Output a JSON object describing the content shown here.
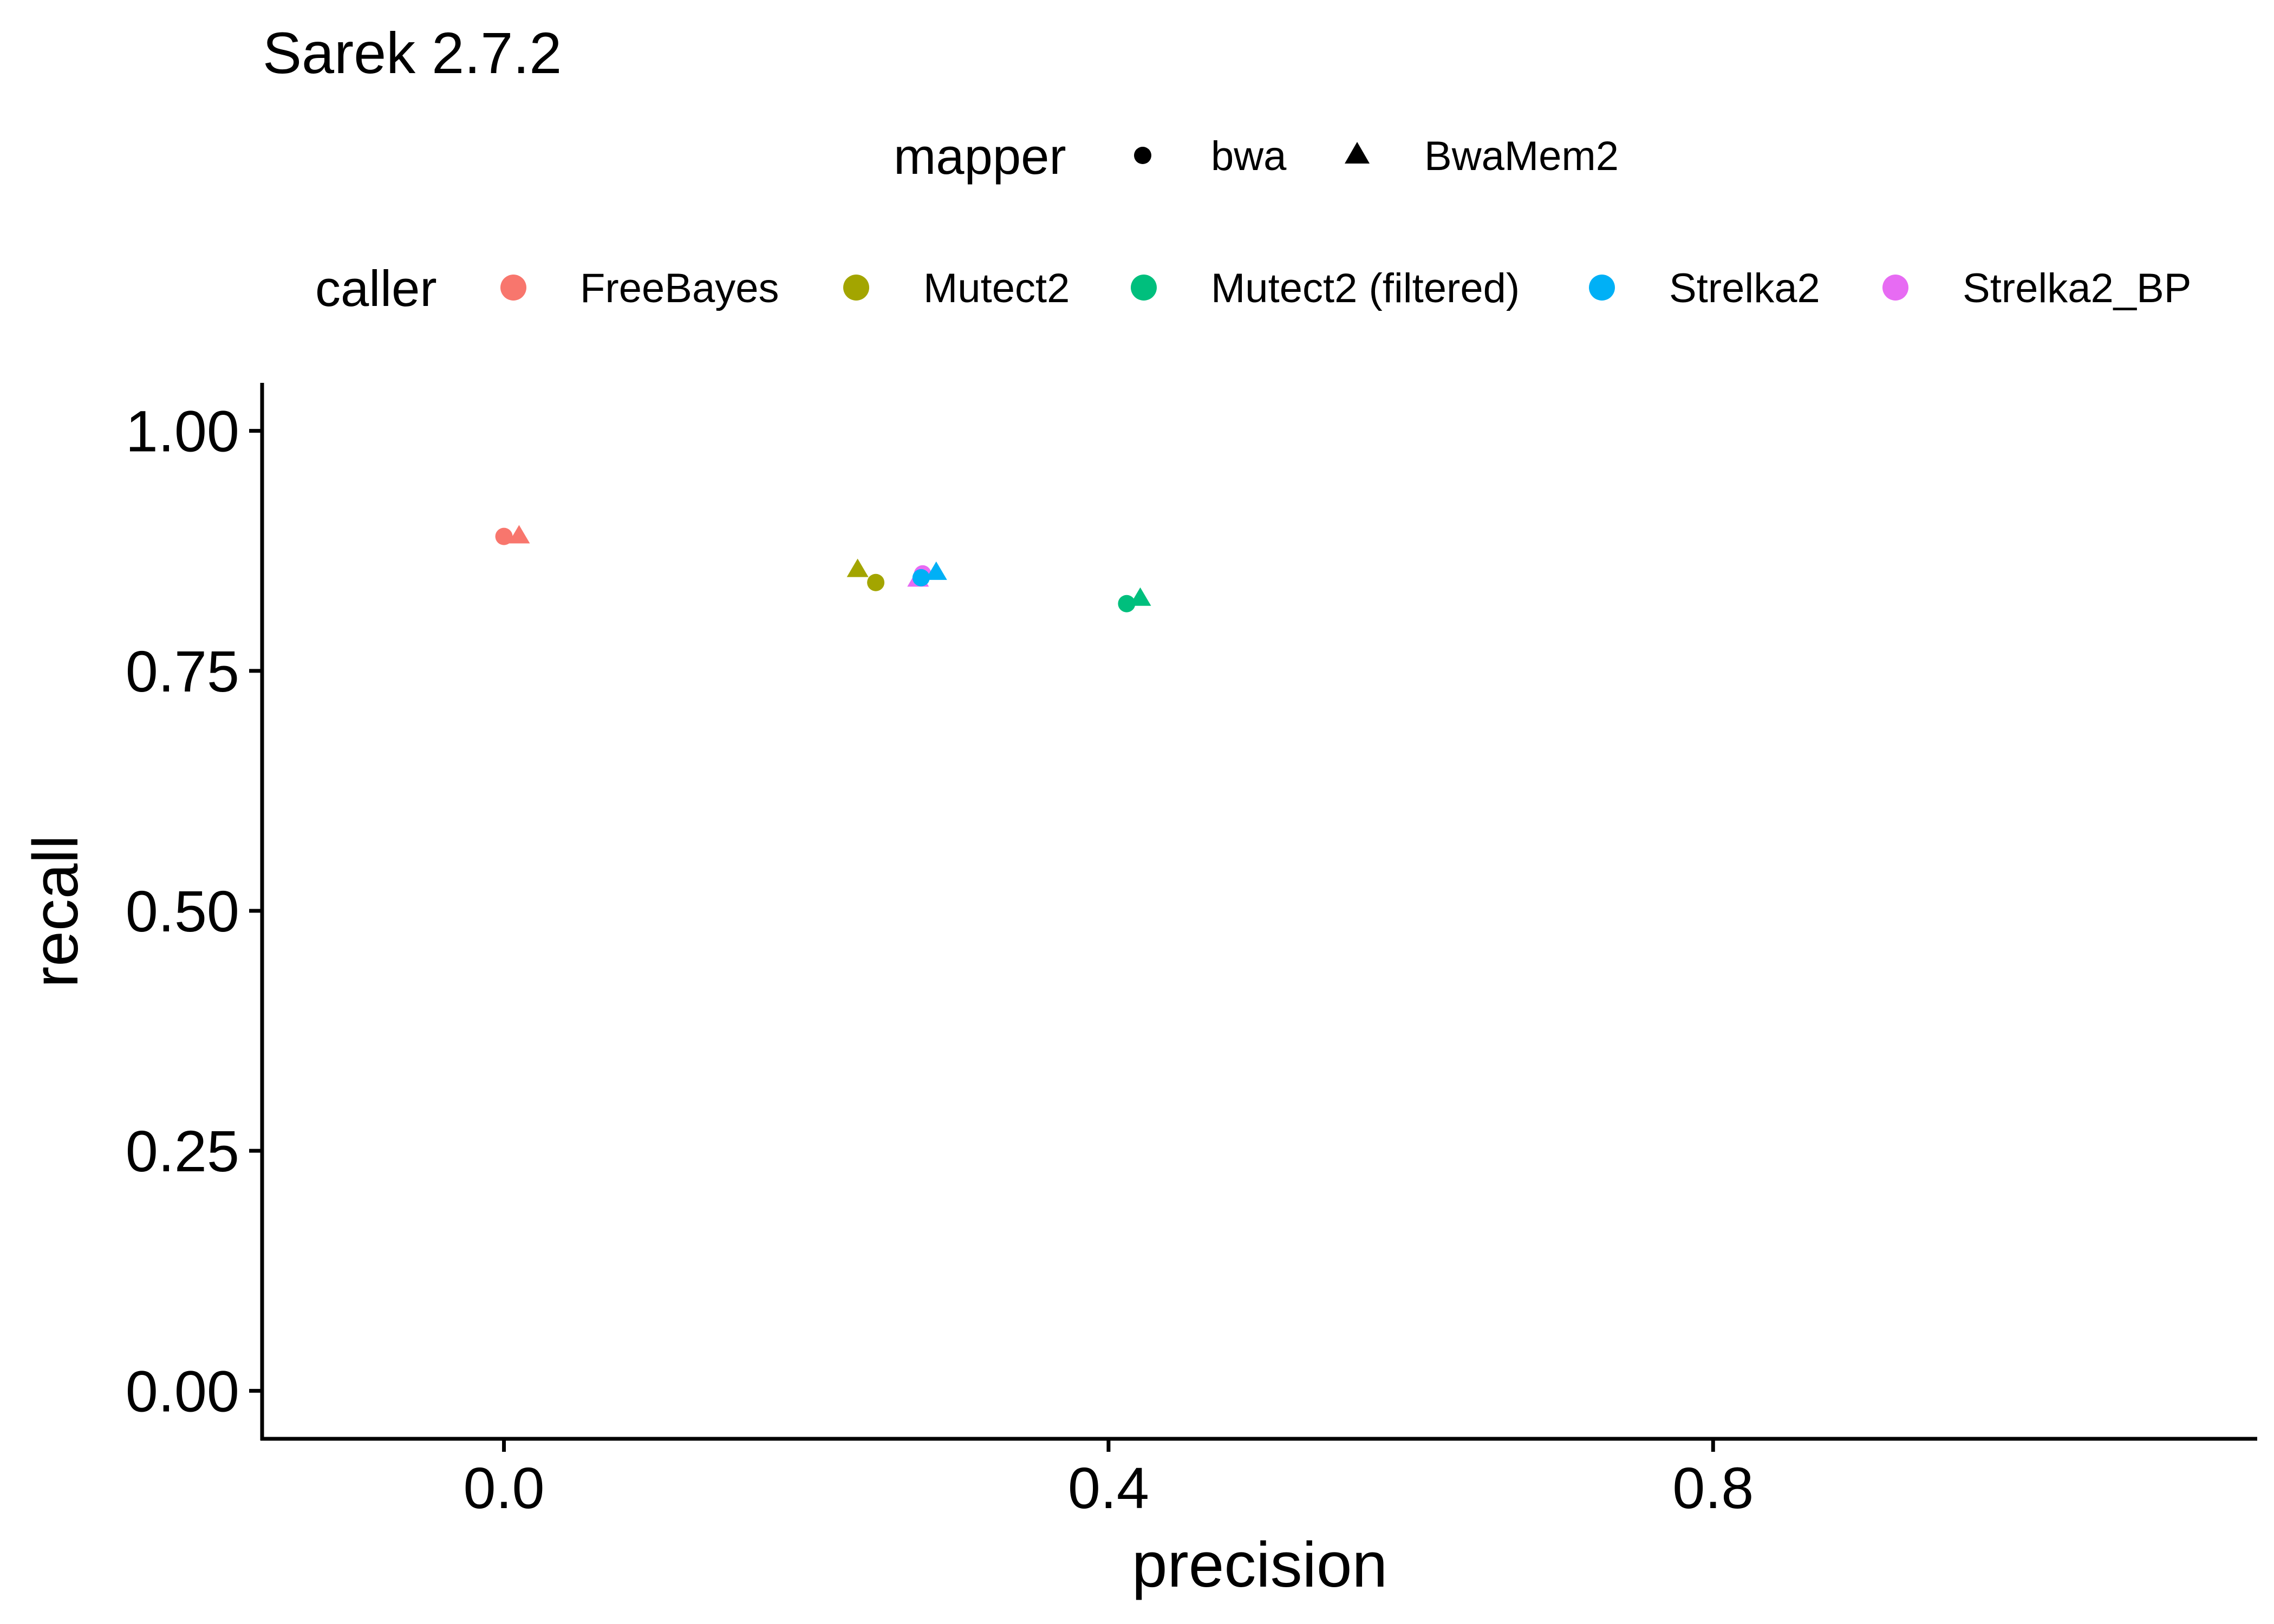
{
  "chart_data": {
    "type": "scatter",
    "title": "Sarek 2.7.2",
    "xlabel": "precision",
    "ylabel": "recall",
    "xlim": [
      -0.16,
      1.16
    ],
    "ylim": [
      -0.05,
      1.05
    ],
    "x_ticks": [
      0.0,
      0.4,
      0.8
    ],
    "x_tick_labels": [
      "0.0",
      "0.4",
      "0.8"
    ],
    "y_ticks": [
      0.0,
      0.25,
      0.5,
      0.75,
      1.0
    ],
    "y_tick_labels": [
      "0.00",
      "0.25",
      "0.50",
      "0.75",
      "1.00"
    ],
    "grid": false,
    "legend_position": "top",
    "legend": {
      "mapper": {
        "title": "mapper",
        "entries": [
          {
            "label": "bwa",
            "shape": "circle"
          },
          {
            "label": "BwaMem2",
            "shape": "triangle"
          }
        ]
      },
      "caller": {
        "title": "caller",
        "entries": [
          {
            "label": "FreeBayes",
            "color": "#F8766D"
          },
          {
            "label": "Mutect2",
            "color": "#A3A500"
          },
          {
            "label": "Mutect2 (filtered)",
            "color": "#00BF7D"
          },
          {
            "label": "Strelka2",
            "color": "#00B0F6"
          },
          {
            "label": "Strelka2_BP",
            "color": "#E76BF3"
          }
        ]
      }
    },
    "points": [
      {
        "caller": "FreeBayes",
        "mapper": "bwa",
        "x": 0.0,
        "y": 0.89
      },
      {
        "caller": "FreeBayes",
        "mapper": "BwaMem2",
        "x": 0.01,
        "y": 0.89
      },
      {
        "caller": "Mutect2",
        "mapper": "BwaMem2",
        "x": 0.234,
        "y": 0.855
      },
      {
        "caller": "Mutect2",
        "mapper": "bwa",
        "x": 0.246,
        "y": 0.842
      },
      {
        "caller": "Strelka2_BP",
        "mapper": "BwaMem2",
        "x": 0.274,
        "y": 0.845
      },
      {
        "caller": "Strelka2_BP",
        "mapper": "bwa",
        "x": 0.277,
        "y": 0.851
      },
      {
        "caller": "Strelka2",
        "mapper": "bwa",
        "x": 0.276,
        "y": 0.847
      },
      {
        "caller": "Strelka2",
        "mapper": "BwaMem2",
        "x": 0.286,
        "y": 0.852
      },
      {
        "caller": "Mutect2 (filtered)",
        "mapper": "bwa",
        "x": 0.412,
        "y": 0.82
      },
      {
        "caller": "Mutect2 (filtered)",
        "mapper": "BwaMem2",
        "x": 0.421,
        "y": 0.825
      }
    ]
  }
}
